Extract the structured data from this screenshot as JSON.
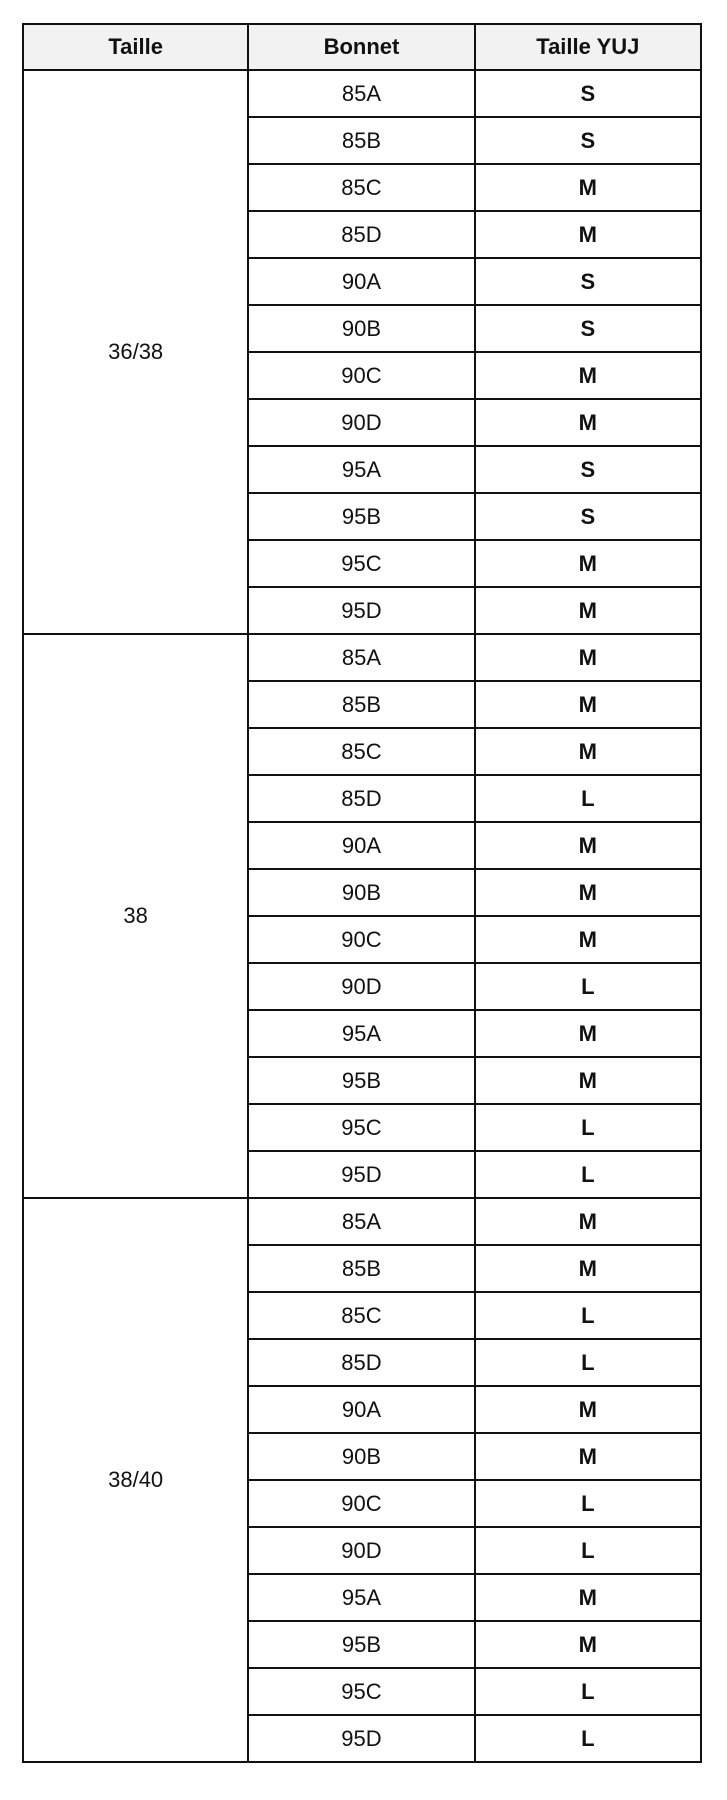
{
  "headers": [
    "Taille",
    "Bonnet",
    "Taille YUJ"
  ],
  "groups": [
    {
      "taille": "36/38",
      "rows": [
        [
          "85A",
          "S"
        ],
        [
          "85B",
          "S"
        ],
        [
          "85C",
          "M"
        ],
        [
          "85D",
          "M"
        ],
        [
          "90A",
          "S"
        ],
        [
          "90B",
          "S"
        ],
        [
          "90C",
          "M"
        ],
        [
          "90D",
          "M"
        ],
        [
          "95A",
          "S"
        ],
        [
          "95B",
          "S"
        ],
        [
          "95C",
          "M"
        ],
        [
          "95D",
          "M"
        ]
      ]
    },
    {
      "taille": "38",
      "rows": [
        [
          "85A",
          "M"
        ],
        [
          "85B",
          "M"
        ],
        [
          "85C",
          "M"
        ],
        [
          "85D",
          "L"
        ],
        [
          "90A",
          "M"
        ],
        [
          "90B",
          "M"
        ],
        [
          "90C",
          "M"
        ],
        [
          "90D",
          "L"
        ],
        [
          "95A",
          "M"
        ],
        [
          "95B",
          "M"
        ],
        [
          "95C",
          "L"
        ],
        [
          "95D",
          "L"
        ]
      ]
    },
    {
      "taille": "38/40",
      "rows": [
        [
          "85A",
          "M"
        ],
        [
          "85B",
          "M"
        ],
        [
          "85C",
          "L"
        ],
        [
          "85D",
          "L"
        ],
        [
          "90A",
          "M"
        ],
        [
          "90B",
          "M"
        ],
        [
          "90C",
          "L"
        ],
        [
          "90D",
          "L"
        ],
        [
          "95A",
          "M"
        ],
        [
          "95B",
          "M"
        ],
        [
          "95C",
          "L"
        ],
        [
          "95D",
          "L"
        ]
      ]
    }
  ]
}
